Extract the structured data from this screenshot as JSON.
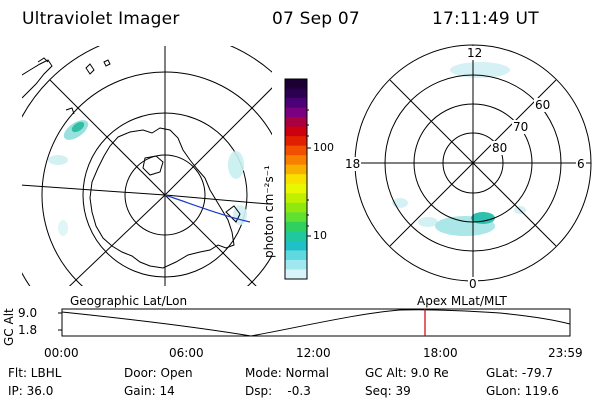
{
  "header": {
    "instrument": "Ultraviolet Imager",
    "date": "07 Sep 07",
    "time": "17:11:49 UT"
  },
  "colorbar": {
    "unit_label": "photon cm⁻²s⁻¹",
    "ticks": [
      "100",
      "10"
    ],
    "colors": [
      "#1a0033",
      "#2b0050",
      "#4b0075",
      "#7a0080",
      "#aa0040",
      "#cc0010",
      "#e02000",
      "#f05000",
      "#f88000",
      "#f8b000",
      "#f8e000",
      "#e8f800",
      "#c0f000",
      "#90e810",
      "#60e030",
      "#30d060",
      "#20c8a0",
      "#20c0c8",
      "#60d8e0",
      "#a0e8ef",
      "#d8f4f8"
    ]
  },
  "left_map": {
    "name": "geographic-polar-map"
  },
  "right_map": {
    "lat_labels": [
      "60",
      "70",
      "80"
    ],
    "mlt_labels": {
      "top": "12",
      "bottom": "0",
      "left": "18",
      "right": "6"
    }
  },
  "timeline": {
    "left_title": "Geographic Lat/Lon",
    "right_title": "Apex  MLat/MLT",
    "axis_label": "GC Alt",
    "y_ticks": [
      "9.0",
      "1.8"
    ],
    "x_ticks": [
      "00:00",
      "06:00",
      "12:00",
      "18:00",
      "23:59"
    ],
    "marker_color": "#cc0000"
  },
  "info": {
    "filter": "Flt: LBHL",
    "ip": "IP: 36.0",
    "door": "Door: Open",
    "gain": "Gain: 14",
    "mode": "Mode: Normal",
    "dsp": "Dsp:    -0.3",
    "gc_alt": "GC Alt: 9.0 Re",
    "seq": "Seq: 39",
    "glat": "GLat: -79.7",
    "glon": "GLon: 119.6"
  }
}
